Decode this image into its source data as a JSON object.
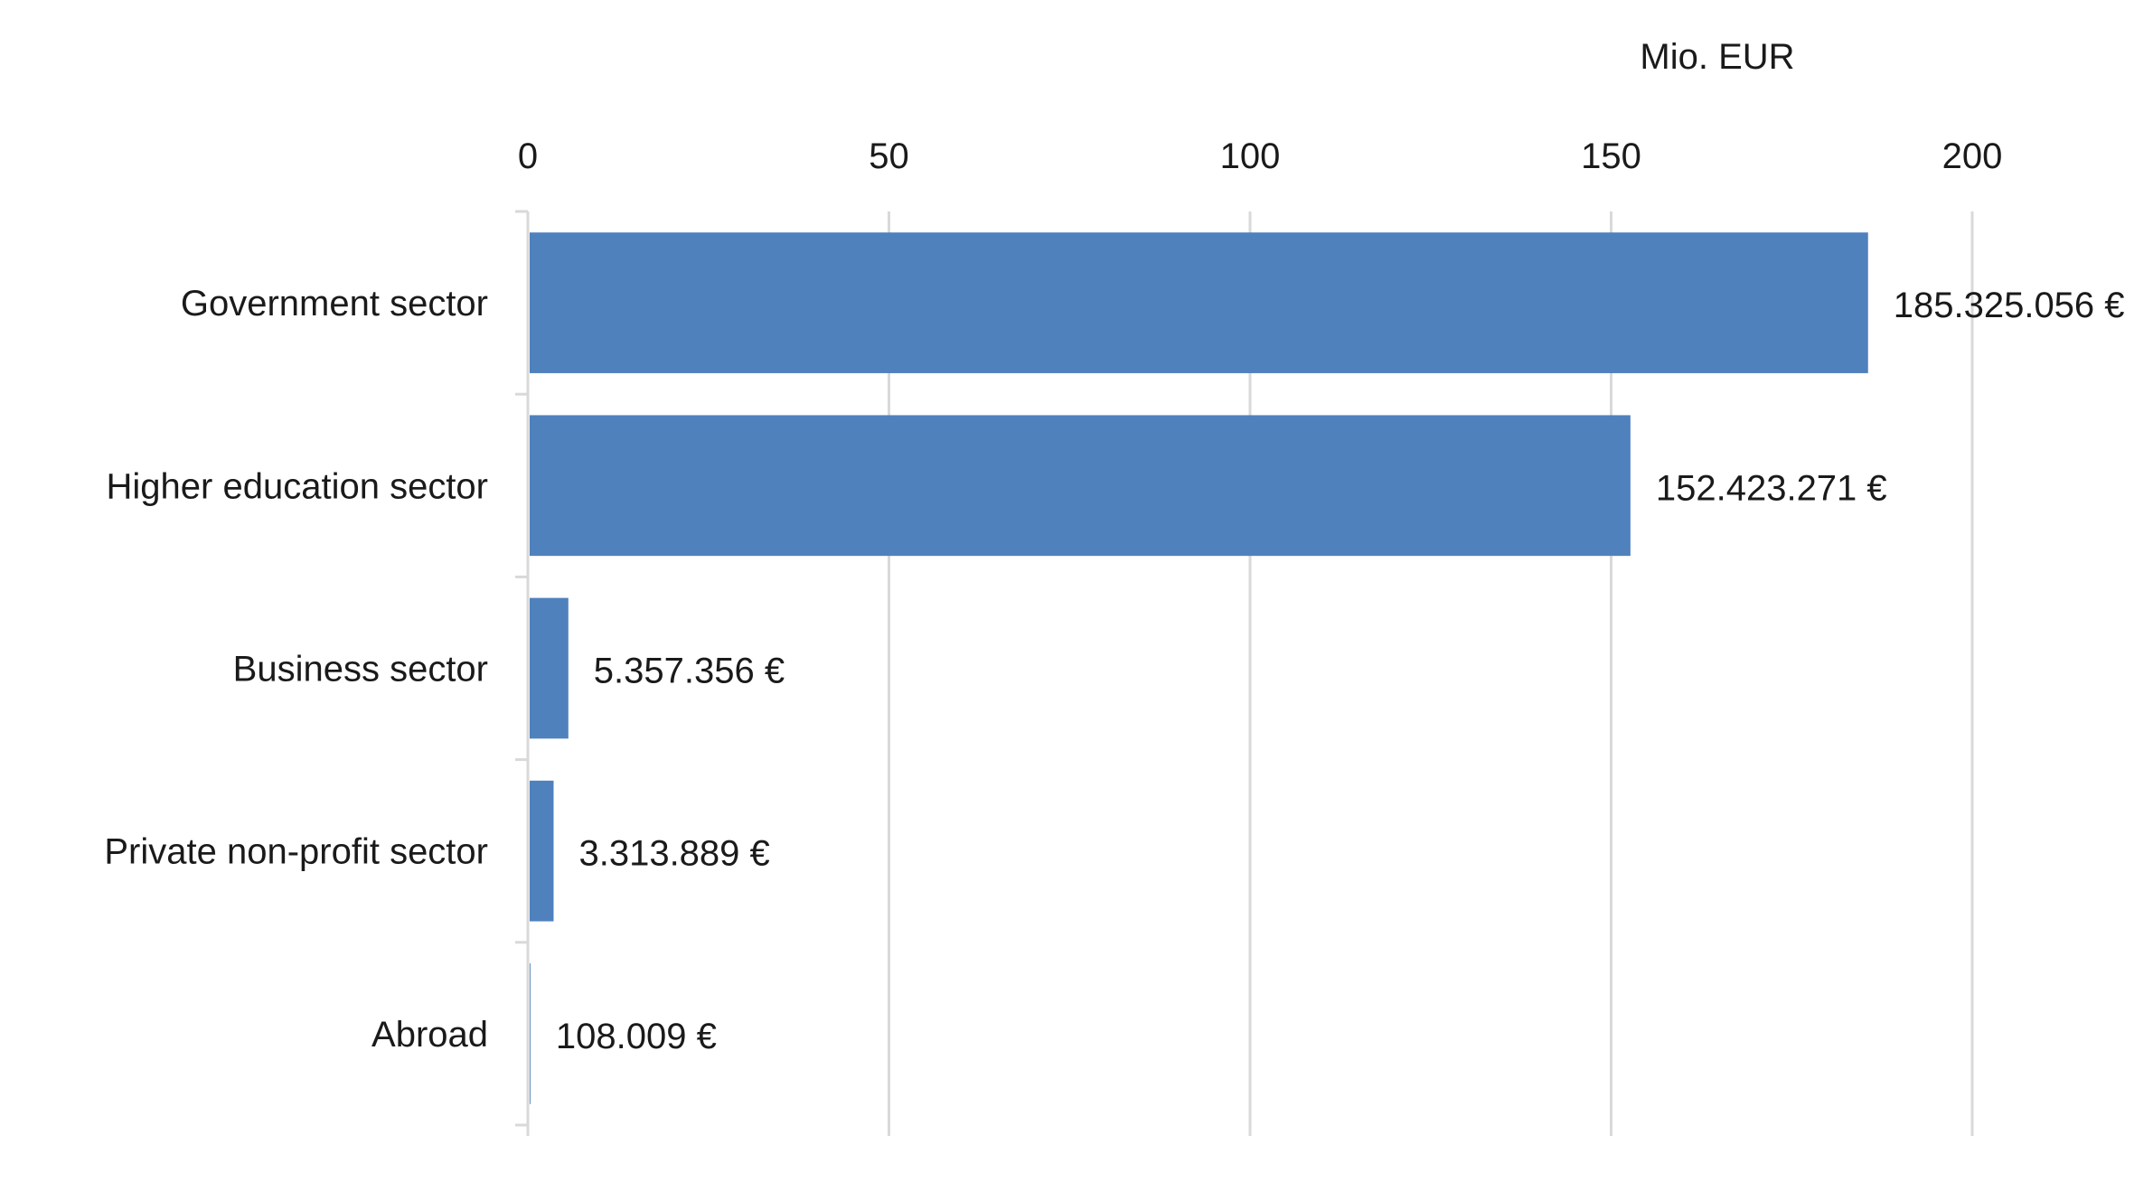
{
  "chart_data": {
    "type": "bar",
    "orientation": "horizontal",
    "categories": [
      "Government sector",
      "Higher education sector",
      "Business sector",
      "Private non-profit sector",
      "Abroad"
    ],
    "values": [
      185.325056,
      152.423271,
      5.357356,
      3.313889,
      0.108009
    ],
    "data_labels": [
      "185.325.056 €",
      "152.423.271 €",
      "5.357.356 €",
      "3.313.889 €",
      "108.009 €"
    ],
    "unit_label": "Mio. EUR",
    "xlim": [
      0,
      200
    ],
    "x_ticks": [
      0,
      50,
      100,
      150,
      200
    ],
    "x_axis_position": "top",
    "grid": true,
    "legend": "none",
    "bar_color": "#4f81bd",
    "grid_color": "#d9d9d9"
  }
}
